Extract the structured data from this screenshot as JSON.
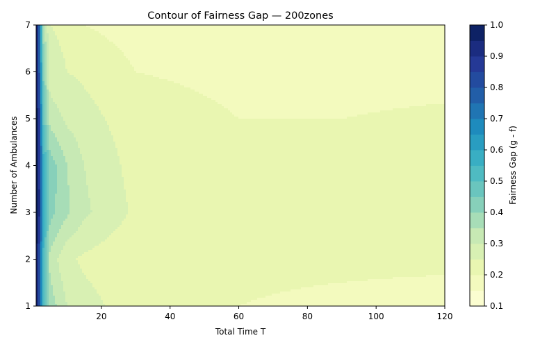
{
  "chart_data": {
    "type": "contour",
    "title": "Contour of Fairness Gap — 200zones",
    "xlabel": "Total Time T",
    "ylabel": "Number of Ambulances",
    "xlim": [
      1,
      120
    ],
    "ylim": [
      1,
      7
    ],
    "x_ticks": [
      20,
      40,
      60,
      80,
      100,
      120
    ],
    "y_ticks": [
      1,
      2,
      3,
      4,
      5,
      6,
      7
    ],
    "colorbar": {
      "label": "Fairness Gap (g - f)",
      "range": [
        0.1,
        1.0
      ],
      "ticks": [
        0.1,
        0.2,
        0.3,
        0.4,
        0.5,
        0.6,
        0.7,
        0.8,
        0.9,
        1.0
      ],
      "levels": [
        0.1,
        0.15,
        0.2,
        0.25,
        0.3,
        0.35,
        0.4,
        0.45,
        0.5,
        0.55,
        0.6,
        0.65,
        0.7,
        0.75,
        0.8,
        0.85,
        0.9,
        0.95,
        1.0
      ],
      "colormap": "YlGnBu"
    },
    "grid": false,
    "x": [
      1,
      2,
      3,
      5,
      10,
      15,
      30,
      60,
      90,
      120
    ],
    "y": [
      1,
      2,
      3,
      4,
      5,
      6,
      7
    ],
    "z": [
      [
        1.0,
        0.78,
        0.55,
        0.38,
        0.3,
        0.27,
        0.22,
        0.2,
        0.19,
        0.18
      ],
      [
        1.0,
        0.8,
        0.55,
        0.33,
        0.26,
        0.24,
        0.21,
        0.21,
        0.21,
        0.21
      ],
      [
        1.0,
        0.9,
        0.6,
        0.42,
        0.36,
        0.31,
        0.24,
        0.22,
        0.22,
        0.22
      ],
      [
        1.0,
        0.88,
        0.58,
        0.43,
        0.35,
        0.3,
        0.23,
        0.22,
        0.22,
        0.22
      ],
      [
        1.0,
        0.85,
        0.5,
        0.33,
        0.29,
        0.27,
        0.22,
        0.2,
        0.2,
        0.21
      ],
      [
        1.0,
        0.78,
        0.45,
        0.27,
        0.25,
        0.24,
        0.2,
        0.19,
        0.18,
        0.18
      ],
      [
        1.0,
        0.75,
        0.38,
        0.25,
        0.24,
        0.2,
        0.18,
        0.17,
        0.16,
        0.15
      ]
    ]
  }
}
